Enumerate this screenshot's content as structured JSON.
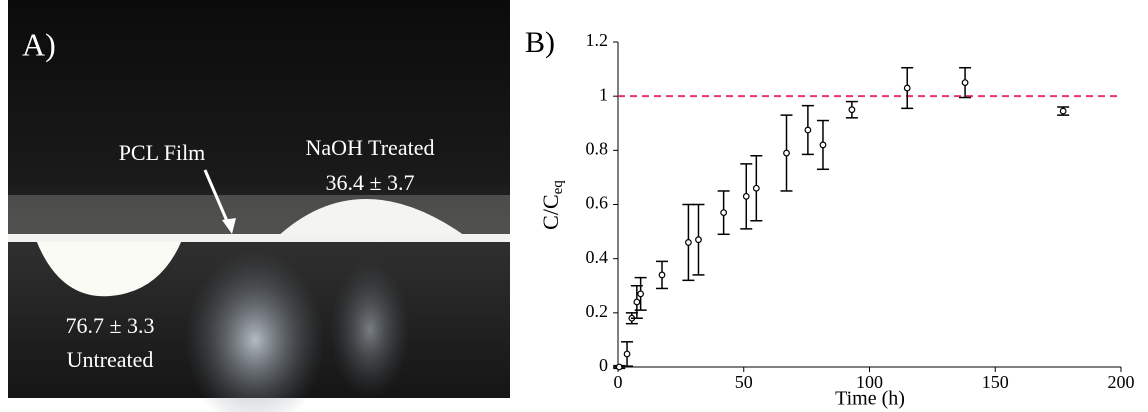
{
  "photo": {
    "panel_label": "A)",
    "film_label": "PCL Film",
    "treated_label": "NaOH Treated",
    "treated_angle": "36.4 ± 3.7",
    "untreated_angle": "76.7 ± 3.3",
    "untreated_label": "Untreated"
  },
  "chart_data": {
    "type": "scatter",
    "panel_label": "B)",
    "xlabel": "Time (h)",
    "ylabel": "C/C",
    "ylabel_subscript": "eq",
    "xlim": [
      0,
      200
    ],
    "ylim": [
      0,
      1.2
    ],
    "xticks": [
      0,
      50,
      100,
      150,
      200
    ],
    "yticks": [
      0,
      0.2,
      0.4,
      0.6,
      0.8,
      1,
      1.2
    ],
    "reference_line": {
      "value": 1,
      "color": "#e8336b"
    },
    "series": [
      {
        "color": "#000000",
        "x": [
          0.5,
          3.6,
          5.5,
          7.5,
          9,
          17.5,
          28,
          32,
          42,
          51,
          55,
          67,
          75.5,
          81.5,
          93,
          115,
          138,
          177
        ],
        "values": [
          0,
          0.048,
          0.18,
          0.24,
          0.27,
          0.34,
          0.46,
          0.47,
          0.57,
          0.63,
          0.66,
          0.79,
          0.875,
          0.82,
          0.95,
          1.03,
          1.05,
          0.945
        ],
        "errors": [
          0.005,
          0.045,
          0.02,
          0.06,
          0.06,
          0.05,
          0.14,
          0.13,
          0.08,
          0.12,
          0.12,
          0.14,
          0.09,
          0.09,
          0.03,
          0.075,
          0.055,
          0.015
        ]
      }
    ]
  }
}
